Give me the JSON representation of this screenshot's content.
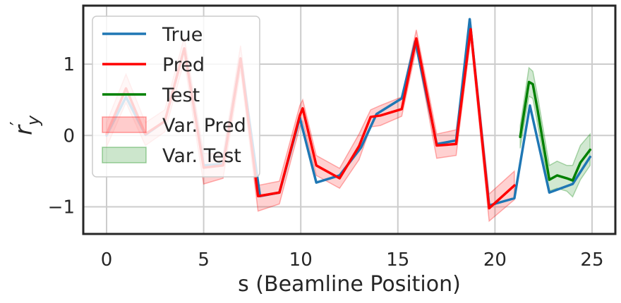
{
  "chart_data": {
    "type": "line",
    "title": "",
    "xlabel": "s (Beamline Position)",
    "ylabel": "r′y",
    "xlim": [
      -1.2,
      26.2
    ],
    "ylim": [
      -1.38,
      1.82
    ],
    "xticks": [
      0,
      5,
      10,
      15,
      20,
      25
    ],
    "yticks": [
      -1,
      0,
      1
    ],
    "xtick_labels": [
      "0",
      "5",
      "10",
      "15",
      "20",
      "25"
    ],
    "ytick_labels": [
      "−1",
      "0",
      "1"
    ],
    "grid": true,
    "legend_position": "top-left",
    "legend": [
      {
        "label": "True",
        "kind": "line",
        "color": "#1f77b4"
      },
      {
        "label": "Pred",
        "kind": "line",
        "color": "#ff0000"
      },
      {
        "label": "Test",
        "kind": "line",
        "color": "#008000"
      },
      {
        "label": "Var. Pred",
        "kind": "band",
        "color": "#ff0000"
      },
      {
        "label": "Var. Test",
        "kind": "band",
        "color": "#008000"
      }
    ],
    "series": [
      {
        "name": "True",
        "color": "#1f77b4",
        "x": [
          0,
          1,
          2,
          3,
          4,
          5,
          6,
          6.9,
          7.9,
          8.9,
          9.95,
          10.8,
          12.0,
          13.1,
          13.9,
          15.2,
          15.9,
          17.0,
          18.0,
          18.7,
          19.7,
          21.0,
          21.8,
          22.8,
          24.0,
          24.9
        ],
        "y": [
          0,
          0.54,
          0.01,
          0.2,
          1.22,
          -0.42,
          -0.4,
          1.08,
          -0.85,
          -0.8,
          0.25,
          -0.66,
          -0.56,
          -0.17,
          0.3,
          0.52,
          1.32,
          -0.12,
          -0.07,
          1.63,
          -0.98,
          -0.88,
          0.42,
          -0.8,
          -0.68,
          -0.3
        ]
      },
      {
        "name": "Pred",
        "color": "#ff0000",
        "x": [
          0,
          1,
          2,
          3,
          4,
          5,
          6,
          6.9,
          7.8,
          8.9,
          9.95,
          10.1,
          10.8,
          12.0,
          13.0,
          13.6,
          14.1,
          15.2,
          15.95,
          17.0,
          18.0,
          18.75,
          19.7,
          21.0
        ],
        "y": [
          0.02,
          0.66,
          0.02,
          0.2,
          1.22,
          -0.45,
          -0.42,
          1.08,
          -0.85,
          -0.8,
          0.28,
          0.38,
          -0.42,
          -0.6,
          -0.15,
          0.26,
          0.28,
          0.37,
          1.36,
          -0.14,
          -0.12,
          1.49,
          -1.02,
          -0.7
        ]
      },
      {
        "name": "Test",
        "color": "#008000",
        "x": [
          21.3,
          21.75,
          21.95,
          22.2,
          22.8,
          23.2,
          23.7,
          24.0,
          24.4,
          24.9
        ],
        "y": [
          -0.02,
          0.75,
          0.72,
          0.35,
          -0.62,
          -0.56,
          -0.6,
          -0.63,
          -0.38,
          -0.2
        ]
      }
    ],
    "bands": [
      {
        "name": "Var. Pred",
        "color": "#ff0000",
        "x": [
          0,
          1,
          2,
          3,
          4,
          5,
          6,
          6.9,
          7.8,
          8.9,
          9.95,
          10.1,
          10.8,
          12.0,
          13.0,
          13.6,
          14.1,
          15.2,
          15.95,
          17.0,
          18.0,
          18.75,
          19.7,
          21.0
        ],
        "lower": [
          -0.16,
          0.46,
          -0.14,
          0.05,
          1.05,
          -0.68,
          -0.6,
          0.92,
          -1.06,
          -0.96,
          0.12,
          0.2,
          -0.56,
          -0.74,
          -0.34,
          0.12,
          0.14,
          0.27,
          1.22,
          -0.32,
          -0.28,
          1.36,
          -1.2,
          -0.9
        ],
        "upper": [
          0.18,
          0.86,
          0.18,
          0.36,
          1.38,
          -0.25,
          -0.26,
          1.26,
          -0.7,
          -0.64,
          0.42,
          0.5,
          -0.28,
          -0.46,
          0.02,
          0.36,
          0.42,
          0.54,
          1.48,
          0.02,
          0.08,
          1.58,
          -0.82,
          -0.5
        ]
      },
      {
        "name": "Var. Test",
        "color": "#008000",
        "x": [
          21.3,
          21.75,
          21.95,
          22.2,
          22.8,
          23.2,
          23.7,
          24.0,
          24.4,
          24.9
        ],
        "lower": [
          -0.18,
          0.55,
          0.52,
          0.15,
          -0.78,
          -0.74,
          -0.78,
          -0.86,
          -0.62,
          -0.42
        ],
        "upper": [
          0.14,
          0.95,
          0.9,
          0.55,
          -0.42,
          -0.36,
          -0.42,
          -0.42,
          -0.14,
          0.02
        ]
      }
    ]
  }
}
